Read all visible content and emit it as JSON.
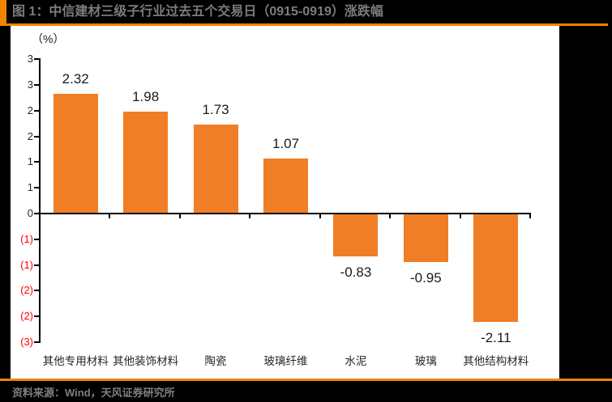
{
  "header": {
    "title": "图 1：中信建材三级子行业过去五个交易日（0915-0919）涨跌幅"
  },
  "footer": {
    "source": "资料来源：Wind，天风证券研究所"
  },
  "colors": {
    "page_background": "#000000",
    "accent_orange": "#F08300",
    "bar_orange": "#F07E26",
    "panel_white": "#FFFFFF",
    "title_text": "#7C7C7C",
    "source_text": "#7F7F7F",
    "axis_black": "#000000",
    "positive_tick_text": "#262626",
    "negative_tick_text": "#FF0000",
    "value_label_text": "#1A1A1A"
  },
  "chart_data": {
    "type": "bar",
    "title": "中信建材三级子行业过去五个交易日（0915-0919）涨跌幅",
    "unit_label": "（%）",
    "categories": [
      "其他专用材料",
      "其他装饰材料",
      "陶瓷",
      "玻璃纤维",
      "水泥",
      "玻璃",
      "其他结构材料"
    ],
    "values": [
      2.32,
      1.98,
      1.73,
      1.07,
      -0.83,
      -0.95,
      -2.11
    ],
    "value_labels": [
      "2.32",
      "1.98",
      "1.73",
      "1.07",
      "-0.83",
      "-0.95",
      "-2.11"
    ],
    "xlabel": "",
    "ylabel": "（%）",
    "ylim": [
      -2.5,
      3.0
    ],
    "ytick_step": 0.5,
    "yticks": [
      {
        "v": 3.0,
        "label": "3"
      },
      {
        "v": 2.5,
        "label": "3"
      },
      {
        "v": 2.0,
        "label": "2"
      },
      {
        "v": 1.5,
        "label": "2"
      },
      {
        "v": 1.0,
        "label": "1"
      },
      {
        "v": 0.5,
        "label": "1"
      },
      {
        "v": 0.0,
        "label": "0"
      },
      {
        "v": -0.5,
        "label": "(1)"
      },
      {
        "v": -1.0,
        "label": "(1)"
      },
      {
        "v": -1.5,
        "label": "(2)"
      },
      {
        "v": -2.0,
        "label": "(2)"
      },
      {
        "v": -2.5,
        "label": "(3)"
      }
    ],
    "grid": false,
    "legend": null
  }
}
